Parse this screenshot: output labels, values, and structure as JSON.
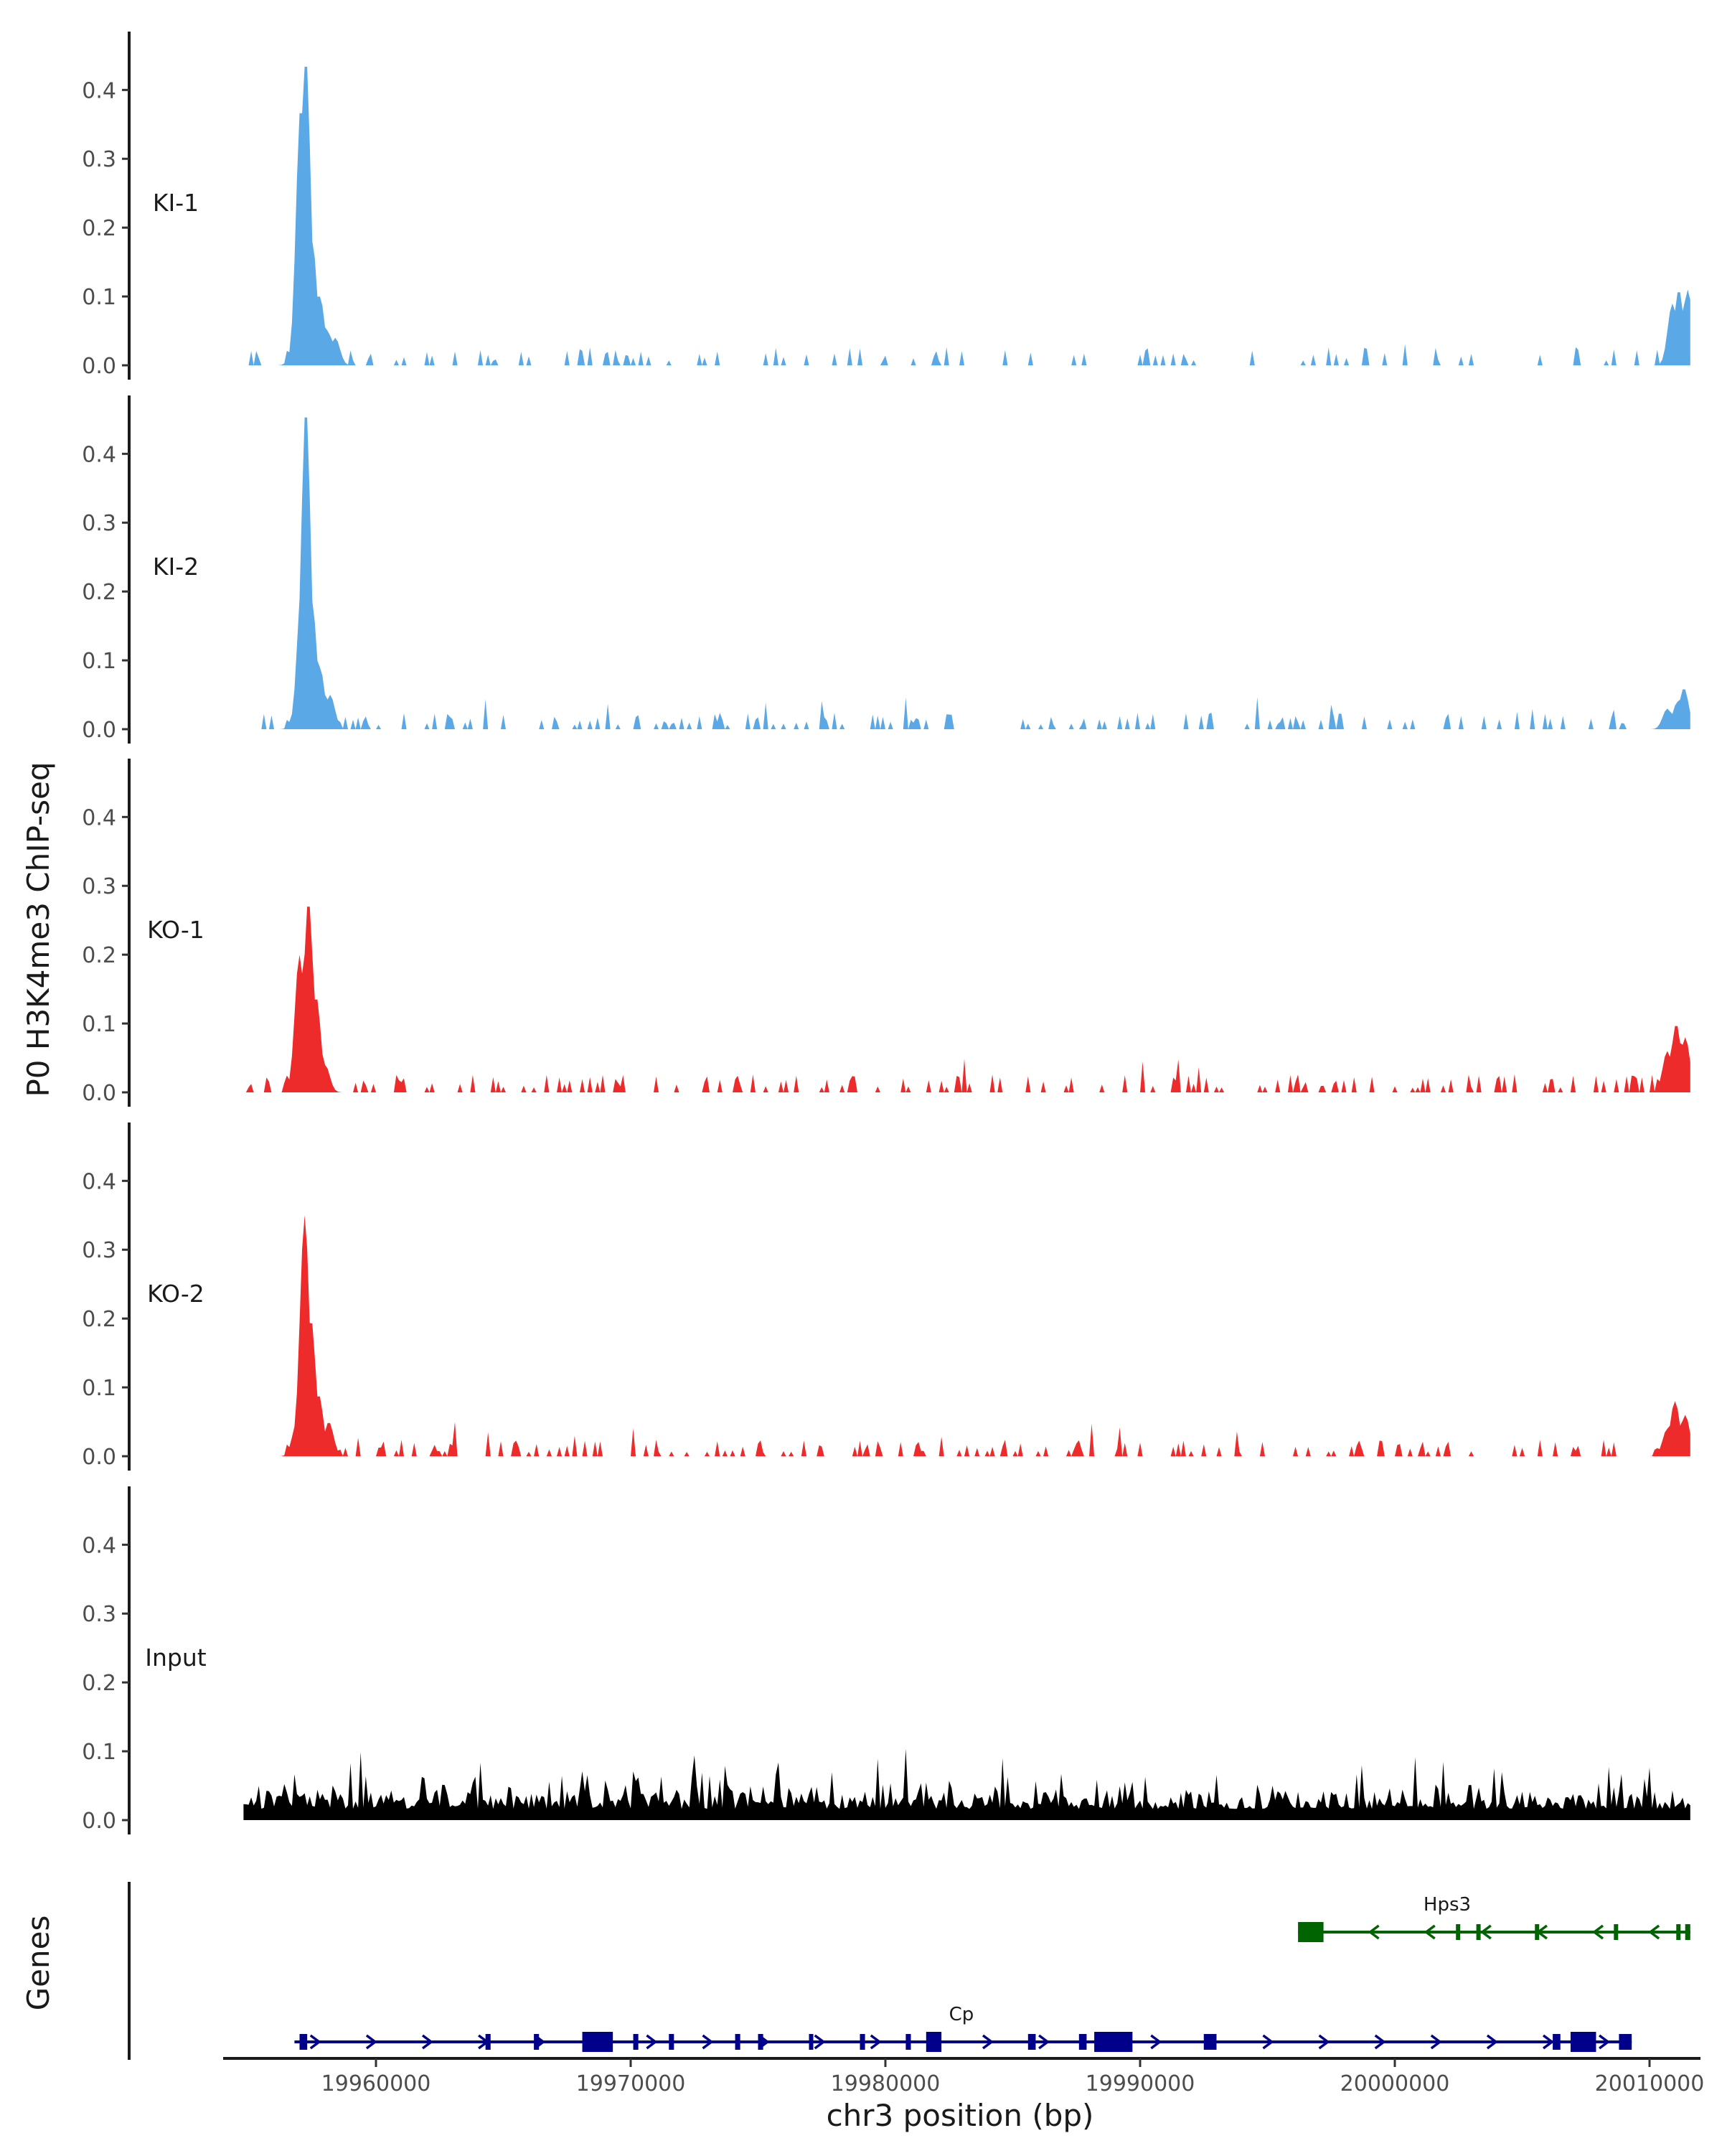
{
  "chart_data": {
    "type": "area",
    "title": "",
    "ylabel": "P0 H3K4me3 ChIP-seq",
    "xlabel": "chr3 position (bp)",
    "xlim": [
      19954000,
      20012000
    ],
    "ylim": [
      0,
      0.49
    ],
    "y_ticks": [
      0.0,
      0.1,
      0.2,
      0.3,
      0.4
    ],
    "y_tick_labels": [
      "0.0",
      "0.1",
      "0.2",
      "0.3",
      "0.4"
    ],
    "x_ticks": [
      19960000,
      19970000,
      19980000,
      19990000,
      20000000,
      20010000
    ],
    "x_tick_labels": [
      "19960000",
      "19970000",
      "19980000",
      "19990000",
      "20000000",
      "20010000"
    ],
    "data_x_range": [
      19954800,
      20011600
    ],
    "tracks": [
      {
        "name": "KI-1",
        "color": "#5aa9e6",
        "peaks": [
          [
            19956800,
            0.03
          ],
          [
            19957050,
            0.38
          ],
          [
            19957250,
            0.45
          ],
          [
            19957500,
            0.18
          ],
          [
            19957800,
            0.1
          ],
          [
            19958100,
            0.05
          ],
          [
            19958400,
            0.04
          ]
        ],
        "end_peaks": [
          [
            20010900,
            0.09
          ],
          [
            20011150,
            0.11
          ],
          [
            20011500,
            0.11
          ]
        ],
        "noise_amp": 0.022,
        "noise_density": 0.55,
        "seed": 11
      },
      {
        "name": "KI-2",
        "color": "#5aa9e6",
        "peaks": [
          [
            19956900,
            0.04
          ],
          [
            19957100,
            0.22
          ],
          [
            19957250,
            0.47
          ],
          [
            19957500,
            0.18
          ],
          [
            19957800,
            0.09
          ],
          [
            19958200,
            0.05
          ]
        ],
        "end_peaks": [
          [
            20010700,
            0.03
          ],
          [
            20011100,
            0.04
          ],
          [
            20011350,
            0.06
          ]
        ],
        "noise_amp": 0.02,
        "noise_density": 0.6,
        "seed": 23
      },
      {
        "name": "KO-1",
        "color": "#ee2b2b",
        "peaks": [
          [
            19957000,
            0.2
          ],
          [
            19957350,
            0.28
          ],
          [
            19957650,
            0.14
          ],
          [
            19958000,
            0.04
          ]
        ],
        "end_peaks": [
          [
            20010700,
            0.06
          ],
          [
            20011050,
            0.1
          ],
          [
            20011400,
            0.08
          ]
        ],
        "noise_amp": 0.022,
        "noise_density": 0.65,
        "seed": 37
      },
      {
        "name": "KO-2",
        "color": "#ee2b2b",
        "peaks": [
          [
            19956900,
            0.05
          ],
          [
            19957200,
            0.35
          ],
          [
            19957450,
            0.2
          ],
          [
            19957750,
            0.09
          ],
          [
            19958150,
            0.05
          ]
        ],
        "end_peaks": [
          [
            20010700,
            0.04
          ],
          [
            20011000,
            0.08
          ],
          [
            20011400,
            0.06
          ]
        ],
        "noise_amp": 0.02,
        "noise_density": 0.72,
        "seed": 51
      },
      {
        "name": "Input",
        "color": "#000000",
        "peaks": [],
        "end_peaks": [],
        "noise_amp": 0.065,
        "noise_density": 1.0,
        "baseline": 0.015,
        "seed": 77
      }
    ],
    "genes_label": "Genes",
    "genes": [
      {
        "name": "Hps3",
        "color": "#006400",
        "strand": "-",
        "start": 19996200,
        "end": 20011600,
        "exons": [
          [
            19996200,
            19997200
          ],
          [
            20002400,
            20002500
          ],
          [
            20003200,
            20003350
          ],
          [
            20005500,
            20005600
          ],
          [
            20008600,
            20008700
          ],
          [
            20011050,
            20011200
          ],
          [
            20011400,
            20011600
          ]
        ]
      },
      {
        "name": "Cp",
        "color": "#00008b",
        "strand": "+",
        "start": 19956800,
        "end": 20009300,
        "exons": [
          [
            19957000,
            19957300
          ],
          [
            19964300,
            19964500
          ],
          [
            19966200,
            19966400
          ],
          [
            19968100,
            19969300
          ],
          [
            19970100,
            19970300
          ],
          [
            19971500,
            19971700
          ],
          [
            19974100,
            19974300
          ],
          [
            19975000,
            19975200
          ],
          [
            19977000,
            19977100
          ],
          [
            19979000,
            19979200
          ],
          [
            19980800,
            19981000
          ],
          [
            19981600,
            19982200
          ],
          [
            19985600,
            19985900
          ],
          [
            19987600,
            19987900
          ],
          [
            19988200,
            19989700
          ],
          [
            19992500,
            19993000
          ],
          [
            20006200,
            20006500
          ],
          [
            20006900,
            20007900
          ],
          [
            20008800,
            20009300
          ]
        ]
      }
    ]
  }
}
